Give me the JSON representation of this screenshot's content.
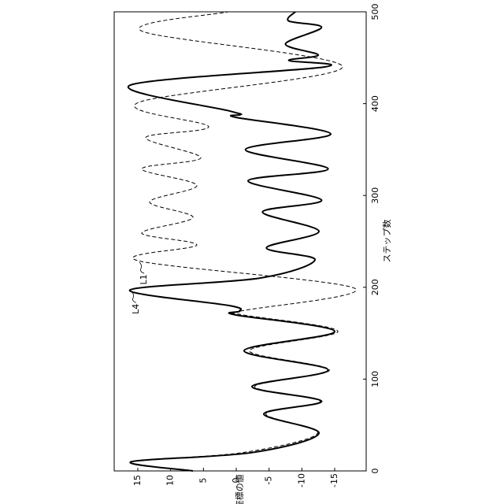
{
  "chart_data": {
    "type": "line",
    "x_label": "ステップ数",
    "y_label": "X座標の値",
    "xlim": [
      0,
      500
    ],
    "xticks": [
      0,
      100,
      200,
      300,
      400,
      500
    ],
    "ylim": [
      -19.8,
      18.6
    ],
    "yticks": [
      -15,
      -10,
      -5,
      0,
      5,
      10,
      15
    ],
    "series": [
      {
        "name": "L4",
        "color": "#000000",
        "dash": false,
        "x": [
          0,
          10,
          20,
          41,
          62,
          76,
          92,
          110,
          131,
          152,
          170,
          174,
          180,
          197,
          210,
          230,
          243,
          261,
          282,
          295,
          316,
          329,
          350,
          367,
          385,
          388,
          392,
          420,
          440,
          447,
          453,
          465,
          483,
          490,
          500
        ],
        "values": [
          6.6,
          16,
          -2.4,
          -12.6,
          -4.2,
          -13,
          -2.4,
          -14,
          -1.2,
          -15,
          0.2,
          -0.5,
          1,
          16.2,
          -3.6,
          -12,
          -4.6,
          -12.6,
          -4,
          -13,
          -1.8,
          -14,
          -1.4,
          -14.4,
          0,
          -0.6,
          1,
          16.2,
          -13.5,
          -8,
          -12.5,
          -7.5,
          -13,
          -8,
          -9
        ]
      },
      {
        "name": "L1",
        "color": "#000000",
        "dash": true,
        "x": [
          0,
          10,
          20,
          41,
          62,
          76,
          92,
          110,
          131,
          152,
          170,
          174,
          199,
          229,
          246,
          259,
          276,
          293,
          311,
          329,
          341,
          363,
          375,
          401,
          440,
          479,
          500
        ],
        "values": [
          6.6,
          16,
          -1,
          -12.4,
          -4.5,
          -12.8,
          -2.8,
          -14.2,
          -2,
          -15.5,
          -1,
          -0.6,
          -18,
          15,
          6,
          14.4,
          6.6,
          13.2,
          6,
          14.4,
          5.4,
          13.8,
          4.2,
          15,
          -16.2,
          14.4,
          1.2
        ]
      }
    ]
  }
}
